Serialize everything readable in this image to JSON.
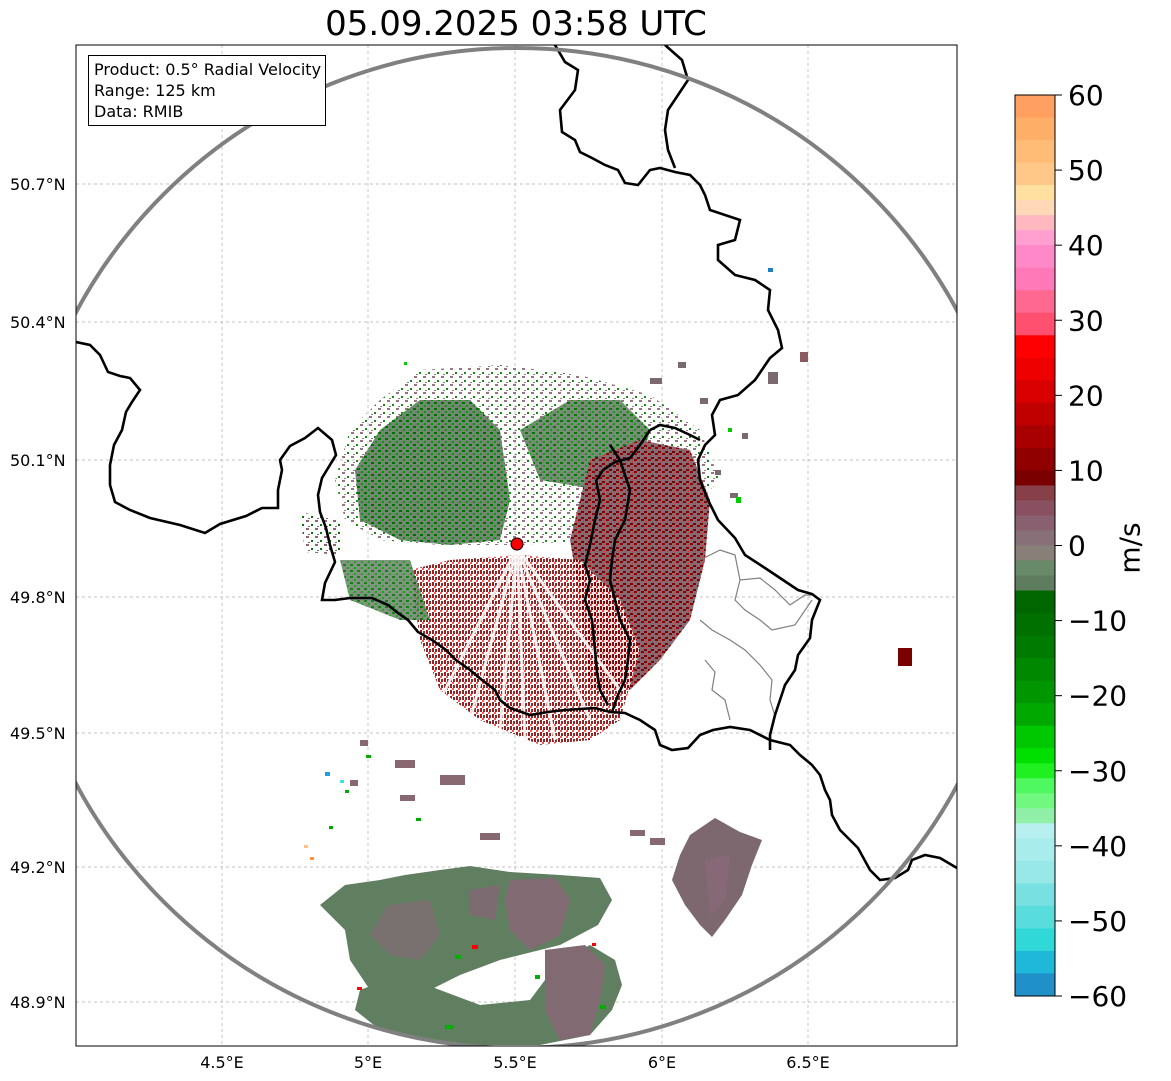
{
  "title": "05.09.2025 03:58 UTC",
  "info": {
    "product": "Product: 0.5° Radial Velocity",
    "range": "Range: 125 km",
    "data": "Data: RMIB"
  },
  "lon_ticks": [
    "4.5°E",
    "5°E",
    "5.5°E",
    "6°E",
    "6.5°E"
  ],
  "lat_ticks": [
    "50.7°N",
    "50.4°N",
    "50.1°N",
    "49.8°N",
    "49.5°N",
    "49.2°N",
    "48.9°N"
  ],
  "colorbar": {
    "unit": "m/s",
    "ticks": [
      "60",
      "50",
      "40",
      "30",
      "20",
      "10",
      "0",
      "−10",
      "−20",
      "−30",
      "−40",
      "−50",
      "−60"
    ],
    "range": [
      -60,
      60
    ]
  },
  "map": {
    "lon_range": [
      4.0,
      7.0
    ],
    "lat_range": [
      48.8,
      50.98
    ],
    "radar_site": {
      "lon": 5.5,
      "lat": 49.915,
      "color": "#ff0000"
    },
    "range_ring_color": "#808080",
    "border_color": "#000000",
    "admin_border_color": "#808080"
  },
  "colors": {
    "receding_dark": "#7a0000",
    "receding_muted": "#8a6470",
    "zero_gray": "#888080",
    "approaching_muted": "#5e7d5e",
    "approaching_green": "#0a7a0a"
  }
}
